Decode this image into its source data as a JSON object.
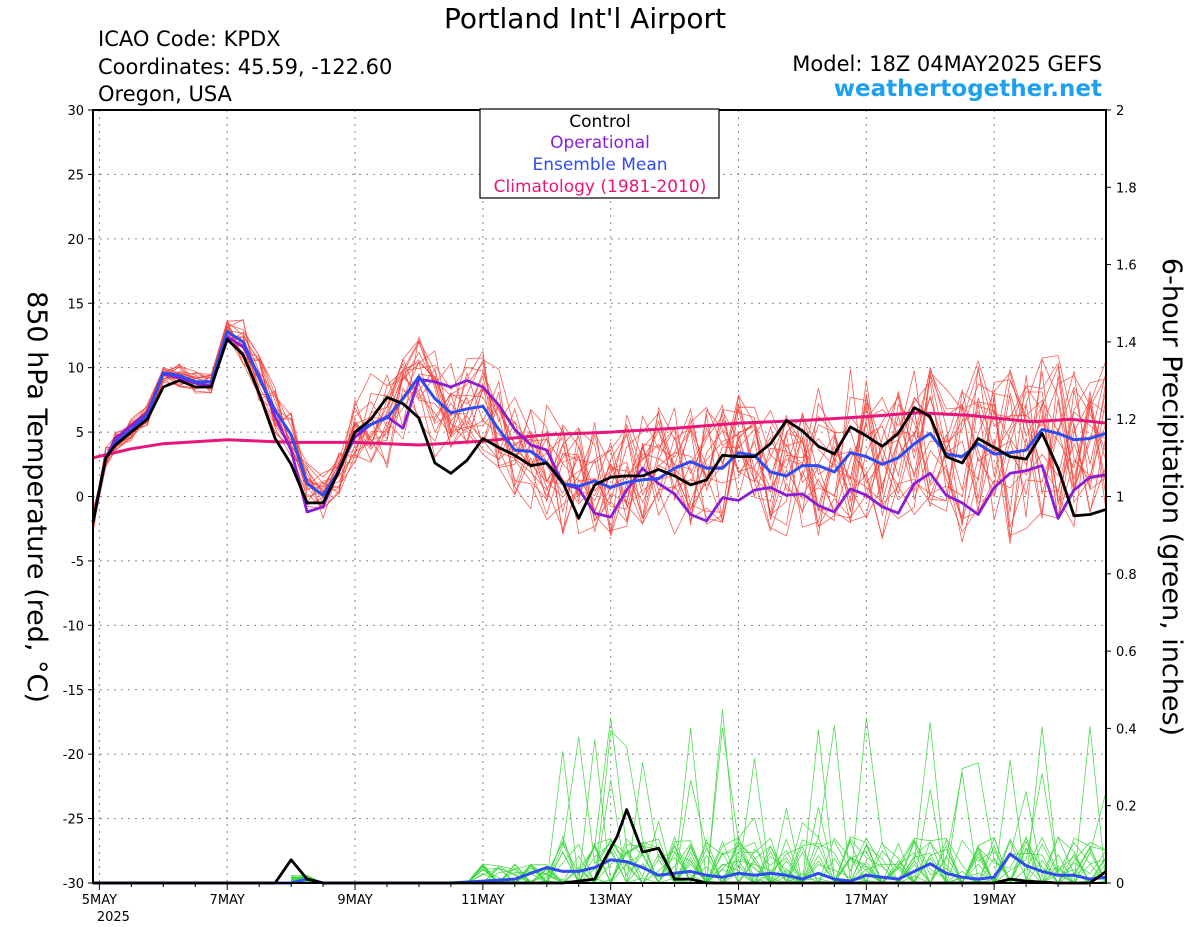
{
  "header": {
    "title": "Portland Int'l Airport",
    "icao": "ICAO Code: KPDX",
    "coordinates": "Coordinates: 45.59, -122.60",
    "region": "Oregon, USA",
    "model": "Model: 18Z 04MAY2025 GEFS",
    "site": "weathertogether.net"
  },
  "colors": {
    "control": "#000000",
    "operational": "#8a1ed6",
    "ensemble_mean": "#2e4cf0",
    "climatology": "#e8157a",
    "temp_members": "#f2443c",
    "precip_members": "#3ed63e",
    "site": "#1ea0f0"
  },
  "chart_data": {
    "type": "line",
    "ylabel": "850 hPa Temperature (red, °C)",
    "y2label": "6-hour Precipitation (green, inches)",
    "ylim": [
      -30,
      30
    ],
    "y2lim": [
      0,
      2
    ],
    "yticks": [
      "30",
      "25",
      "20",
      "15",
      "10",
      "5",
      "0",
      "-5",
      "-10",
      "-15",
      "-20",
      "-25",
      "-30"
    ],
    "y2ticks": [
      "2",
      "1.8",
      "1.6",
      "1.4",
      "1.2",
      "1",
      "0.8",
      "0.6",
      "0.4",
      "0.2",
      "0"
    ],
    "x_unit": "days since 5MAY2025 00Z",
    "xlim": [
      -0.1,
      15.75
    ],
    "xticks": [
      {
        "x": 0,
        "label": "5MAY",
        "sublabel": "2025"
      },
      {
        "x": 2,
        "label": "7MAY"
      },
      {
        "x": 4,
        "label": "9MAY"
      },
      {
        "x": 6,
        "label": "11MAY"
      },
      {
        "x": 8,
        "label": "13MAY"
      },
      {
        "x": 10,
        "label": "15MAY"
      },
      {
        "x": 12,
        "label": "17MAY"
      },
      {
        "x": 14,
        "label": "19MAY"
      }
    ],
    "grid": true,
    "legend_position": "top-center",
    "legend": [
      "Control",
      "Operational",
      "Ensemble Mean",
      "Climatology (1981-2010)"
    ],
    "series": [
      {
        "name": "Control",
        "axis": "temp",
        "x": [
          -0.1,
          0.1,
          0.25,
          0.5,
          0.75,
          1.0,
          1.25,
          1.5,
          1.75,
          2.0,
          2.25,
          2.5,
          2.75,
          3.0,
          3.25,
          3.5,
          3.75,
          4.0,
          4.25,
          4.5,
          4.75,
          5.0,
          5.25,
          5.5,
          5.75,
          6.0,
          6.25,
          6.5,
          6.75,
          7.0,
          7.25,
          7.5,
          7.75,
          8.0,
          8.25,
          8.5,
          8.75,
          9.0,
          9.25,
          9.5,
          9.75,
          10.0,
          10.25,
          10.5,
          10.75,
          11.0,
          11.25,
          11.5,
          11.75,
          12.0,
          12.25,
          12.5,
          12.75,
          13.0,
          13.25,
          13.5,
          13.75,
          14.0,
          14.25,
          14.5,
          14.75,
          15.0,
          15.25,
          15.5,
          15.75
        ],
        "y": [
          -2,
          3,
          4,
          5,
          6,
          8.5,
          9,
          8.5,
          8.5,
          12.2,
          11,
          8,
          4.5,
          2.5,
          -0.5,
          -0.5,
          2,
          5,
          6,
          7.7,
          7.2,
          6.1,
          2.6,
          1.8,
          2.8,
          4.5,
          3.8,
          3.2,
          2.4,
          2.6,
          1.1,
          -1.7,
          0.9,
          1.5,
          1.6,
          1.6,
          2.1,
          1.6,
          0.9,
          1.3,
          3.2,
          3.1,
          3.1,
          4.1,
          5.9,
          5.1,
          3.9,
          3.3,
          5.4,
          4.7,
          3.9,
          4.9,
          6.9,
          6.2,
          3.1,
          2.6,
          4.5,
          3.8,
          3.1,
          2.9,
          4.9,
          2.2,
          -1.5,
          -1.4,
          -1.0
        ]
      },
      {
        "name": "Operational",
        "axis": "temp",
        "x": [
          -0.1,
          0.1,
          0.25,
          0.5,
          0.75,
          1.0,
          1.25,
          1.5,
          1.75,
          2.0,
          2.25,
          2.5,
          2.75,
          3.0,
          3.25,
          3.5,
          3.75,
          4.0,
          4.25,
          4.5,
          4.75,
          5.0,
          5.25,
          5.5,
          5.75,
          6.0,
          6.25,
          6.5,
          6.75,
          7.0,
          7.25,
          7.5,
          7.75,
          8.0,
          8.25,
          8.5,
          8.75,
          9.0,
          9.25,
          9.5,
          9.75,
          10.0,
          10.25,
          10.5,
          10.75,
          11.0,
          11.25,
          11.5,
          11.75,
          12.0,
          12.25,
          12.5,
          12.75,
          13.0,
          13.25,
          13.5,
          13.75,
          14.0,
          14.25,
          14.5,
          14.75,
          15.0,
          15.25,
          15.5,
          15.75
        ],
        "y": [
          -2,
          3,
          4.5,
          5.5,
          6.5,
          9.5,
          9.2,
          8.8,
          8.6,
          12.4,
          11.6,
          9.4,
          6.2,
          3.6,
          -1.2,
          -0.8,
          2.2,
          4.6,
          5.6,
          6.2,
          5.3,
          9.1,
          8.9,
          8.5,
          9.0,
          8.5,
          7.1,
          5.2,
          4.0,
          3.6,
          1.0,
          0.6,
          -1.3,
          -1.6,
          0.5,
          2.2,
          1.0,
          0.2,
          -1.4,
          -1.9,
          -0.1,
          -0.3,
          0.5,
          0.7,
          0.1,
          0.2,
          -0.7,
          -1.2,
          0.6,
          0.1,
          -0.8,
          -1.3,
          1.0,
          1.8,
          0.1,
          -0.5,
          -1.4,
          0.7,
          1.8,
          2.0,
          2.4,
          -1.7,
          0.5,
          1.5,
          1.7
        ]
      },
      {
        "name": "Ensemble Mean",
        "axis": "temp",
        "x": [
          -0.1,
          0.1,
          0.25,
          0.5,
          0.75,
          1.0,
          1.25,
          1.5,
          1.75,
          2.0,
          2.25,
          2.5,
          2.75,
          3.0,
          3.25,
          3.5,
          3.75,
          4.0,
          4.25,
          4.5,
          4.75,
          5.0,
          5.25,
          5.5,
          5.75,
          6.0,
          6.25,
          6.5,
          6.75,
          7.0,
          7.25,
          7.5,
          7.75,
          8.0,
          8.25,
          8.5,
          8.75,
          9.0,
          9.25,
          9.5,
          9.75,
          10.0,
          10.25,
          10.5,
          10.75,
          11.0,
          11.25,
          11.5,
          11.75,
          12.0,
          12.25,
          12.5,
          12.75,
          13.0,
          13.25,
          13.5,
          13.75,
          14.0,
          14.25,
          14.5,
          14.75,
          15.0,
          15.25,
          15.5,
          15.75
        ],
        "y": [
          -2,
          3,
          4.2,
          5.2,
          6.3,
          9.6,
          9.4,
          8.9,
          8.9,
          12.8,
          12,
          9.2,
          6.7,
          4.8,
          1.0,
          0.1,
          2.0,
          5.0,
          5.6,
          6.1,
          7.6,
          9.3,
          7.6,
          6.5,
          6.8,
          7.0,
          5.2,
          3.6,
          3.5,
          2.6,
          1.0,
          0.8,
          1.2,
          0.7,
          1.1,
          1.3,
          1.4,
          2.2,
          2.7,
          2.2,
          2.2,
          3.4,
          3.2,
          1.9,
          1.6,
          2.4,
          2.4,
          1.9,
          3.4,
          3.1,
          2.5,
          3.0,
          4.1,
          4.9,
          3.3,
          3.1,
          4.1,
          3.3,
          3.4,
          3.6,
          5.2,
          4.9,
          4.4,
          4.5,
          4.9
        ]
      },
      {
        "name": "Climatology (1981-2010)",
        "axis": "temp",
        "x": [
          -0.1,
          0.5,
          1.0,
          2.0,
          3.0,
          4.0,
          5.0,
          6.0,
          7.0,
          8.0,
          9.0,
          10.0,
          11.0,
          12.0,
          12.8,
          13.6,
          14.6,
          15.2,
          15.75
        ],
        "y": [
          3,
          3.7,
          4.1,
          4.4,
          4.2,
          4.2,
          4.0,
          4.3,
          4.8,
          5.0,
          5.3,
          5.7,
          5.9,
          6.2,
          6.5,
          6.3,
          5.8,
          6.0,
          5.7
        ]
      },
      {
        "name": "Control",
        "axis": "precip",
        "x": [
          -0.1,
          2.75,
          3.0,
          3.1,
          3.25,
          3.5,
          5.0,
          7.0,
          7.25,
          7.75,
          7.9,
          8.1,
          8.25,
          8.5,
          8.75,
          9.0,
          9.25,
          9.5,
          10.0,
          10.5,
          11.0,
          13.0,
          14.0,
          14.25,
          14.5,
          15.0,
          15.5,
          15.75
        ],
        "y": [
          0,
          0,
          0.06,
          0.04,
          0.01,
          0,
          0,
          0,
          0,
          0.01,
          0.06,
          0.12,
          0.19,
          0.08,
          0.09,
          0.01,
          0.01,
          0,
          0,
          0,
          0,
          0,
          0,
          0.01,
          0.005,
          0,
          0,
          0.03
        ]
      },
      {
        "name": "Ensemble Mean",
        "axis": "precip",
        "x": [
          -0.1,
          3.0,
          3.25,
          3.5,
          5.5,
          6.0,
          6.5,
          7.0,
          7.25,
          7.5,
          7.75,
          8.0,
          8.25,
          8.5,
          8.75,
          9.0,
          9.25,
          9.5,
          9.75,
          10.0,
          10.25,
          10.5,
          10.75,
          11.0,
          11.25,
          11.5,
          11.75,
          12.0,
          12.25,
          12.5,
          12.75,
          13.0,
          13.25,
          13.5,
          13.75,
          14.0,
          14.25,
          14.5,
          14.75,
          15.0,
          15.25,
          15.5,
          15.75
        ],
        "y": [
          0,
          0,
          0.01,
          0,
          0,
          0.005,
          0.01,
          0.04,
          0.03,
          0.03,
          0.04,
          0.06,
          0.055,
          0.04,
          0.02,
          0.025,
          0.03,
          0.02,
          0.015,
          0.025,
          0.02,
          0.025,
          0.02,
          0.01,
          0.025,
          0.01,
          0.005,
          0.02,
          0.015,
          0.01,
          0.03,
          0.05,
          0.025,
          0.015,
          0.01,
          0.015,
          0.075,
          0.045,
          0.03,
          0.02,
          0.02,
          0.01,
          0.015
        ]
      }
    ]
  }
}
